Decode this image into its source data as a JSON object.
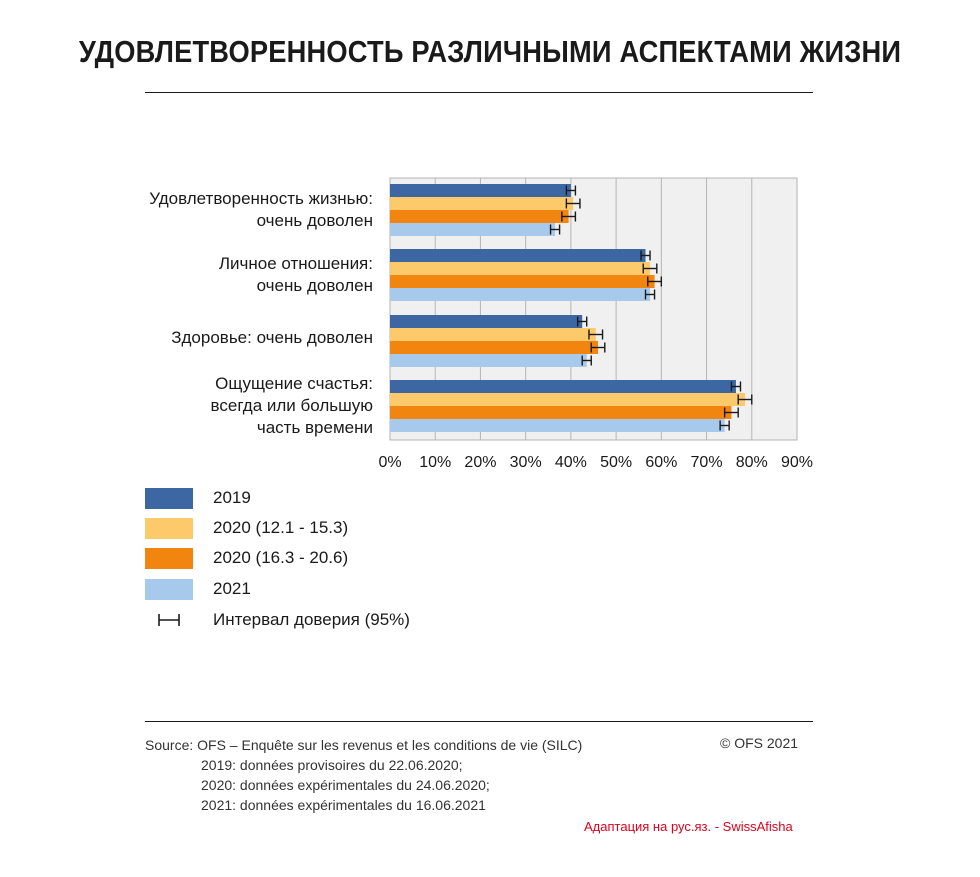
{
  "title": "УДОВЛЕТВОРЕННОСТЬ РАЗЛИЧНЫМИ АСПЕКТАМИ ЖИЗНИ",
  "colors": {
    "s2019": "#3c67a3",
    "s2020a": "#fcc96b",
    "s2020b": "#f28410",
    "s2021": "#a6c9ec",
    "grid_bg": "#f0f0f0",
    "red_note": "#e0001b"
  },
  "legend": {
    "items": [
      {
        "label": "2019",
        "color": "#3c67a3"
      },
      {
        "label": "2020 (12.1 - 15.3)",
        "color": "#fcc96b"
      },
      {
        "label": "2020 (16.3 - 20.6)",
        "color": "#f28410"
      },
      {
        "label": "2021",
        "color": "#a6c9ec"
      }
    ],
    "ci_label": "Интервал доверия (95%)"
  },
  "chart_data": {
    "type": "bar",
    "orientation": "horizontal",
    "title": "УДОВЛЕТВОРЕННОСТЬ РАЗЛИЧНЫМИ АСПЕКТАМИ ЖИЗНИ",
    "categories": [
      [
        "Удовлетворенность жизнью:",
        "очень доволен"
      ],
      [
        "Личное отношения:",
        "очень доволен"
      ],
      [
        "Здоровье: очень доволен"
      ],
      [
        "Ощущение счастья:",
        "всегда или большую",
        "часть времени"
      ]
    ],
    "series": [
      {
        "name": "2019",
        "values": [
          40,
          56.5,
          42.5,
          76.5
        ],
        "ci": [
          [
            39,
            41
          ],
          [
            55.5,
            57.5
          ],
          [
            41.5,
            43.5
          ],
          [
            75.5,
            77.5
          ]
        ]
      },
      {
        "name": "2020 (12.1 - 15.3)",
        "values": [
          40.5,
          57.5,
          45.5,
          78.5
        ],
        "ci": [
          [
            39,
            42
          ],
          [
            56,
            59
          ],
          [
            44,
            47
          ],
          [
            77,
            80
          ]
        ]
      },
      {
        "name": "2020 (16.3 - 20.6)",
        "values": [
          39.5,
          58.5,
          46,
          75.5
        ],
        "ci": [
          [
            38,
            41
          ],
          [
            57,
            60
          ],
          [
            44.5,
            47.5
          ],
          [
            74,
            77
          ]
        ]
      },
      {
        "name": "2021",
        "values": [
          36.5,
          57.5,
          43.5,
          74
        ],
        "ci": [
          [
            35.5,
            37.5
          ],
          [
            56.5,
            58.5
          ],
          [
            42.5,
            44.5
          ],
          [
            73,
            75
          ]
        ]
      }
    ],
    "xlim": [
      0,
      90
    ],
    "xticks": [
      "0%",
      "10%",
      "20%",
      "30%",
      "40%",
      "50%",
      "60%",
      "70%",
      "80%",
      "90%"
    ],
    "grid": true,
    "legend_position": "bottom-left"
  },
  "footer": {
    "source_lines": [
      "Source: OFS – Enquête sur les revenus et les conditions de vie (SILC)",
      "2019: données provisoires du 22.06.2020;",
      "2020: données expérimentales du 24.06.2020;",
      "2021: données expérimentales du 16.06.2021"
    ],
    "copyright": "© OFS 2021",
    "adaptation": "Адаптация на рус.яз. - SwissAfisha"
  }
}
